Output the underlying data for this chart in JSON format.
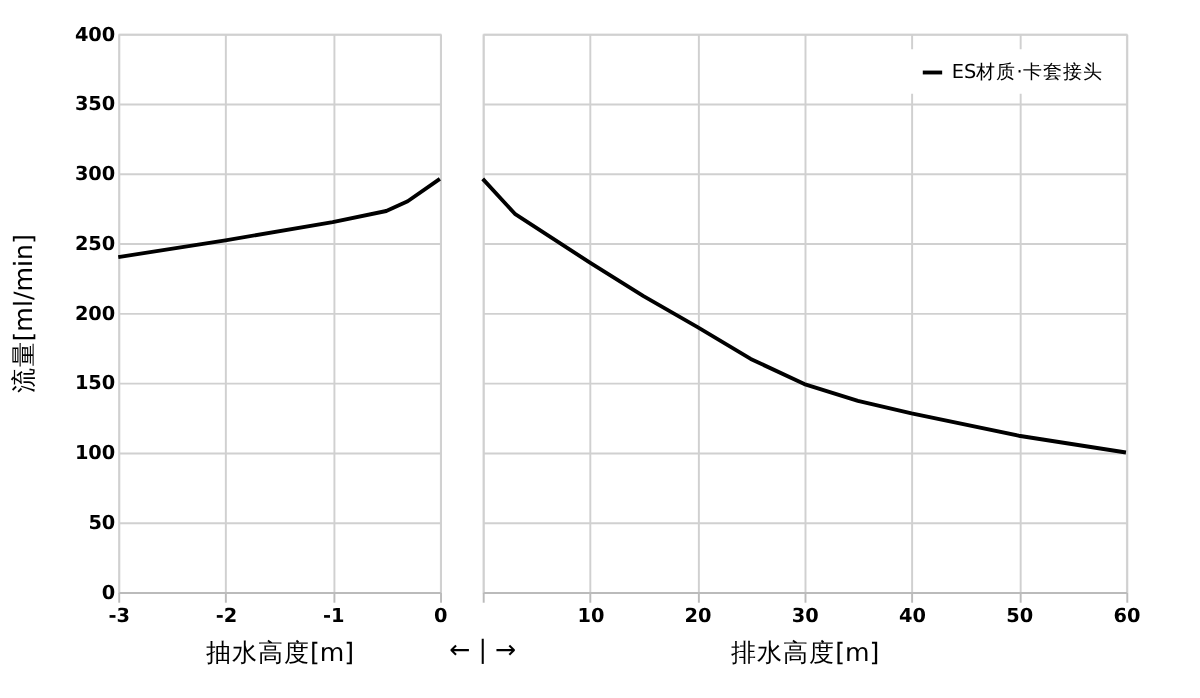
{
  "chart_data": [
    {
      "type": "line",
      "xlabel": "抽水高度[m]",
      "ylabel": "流量[ml/min]",
      "x": [
        -3,
        -2,
        -1,
        -0.5,
        -0.3,
        0
      ],
      "series": [
        {
          "color": "#000000",
          "values": [
            240,
            252,
            265,
            273,
            280,
            296
          ]
        }
      ],
      "xlim": [
        -3,
        0
      ],
      "xticks": [
        -3,
        -2,
        -1,
        0
      ],
      "ylim": [
        0,
        400
      ],
      "yticks": [
        0,
        50,
        100,
        150,
        200,
        250,
        300,
        350,
        400
      ],
      "grid": true,
      "marker": "none",
      "line_style": "solid"
    },
    {
      "type": "line",
      "xlabel": "排水高度[m]",
      "annotations": [
        "← | →"
      ],
      "x": [
        0,
        3,
        10,
        15,
        20,
        25,
        30,
        35,
        40,
        50,
        60
      ],
      "series": [
        {
          "name": "ES材质·卡套接头",
          "color": "#000000",
          "values": [
            296,
            271,
            236,
            212,
            190,
            167,
            149,
            137,
            128,
            112,
            100
          ]
        }
      ],
      "xlim": [
        0,
        60
      ],
      "xticks": [
        {
          "value": 0,
          "label": null
        },
        10,
        20,
        30,
        40,
        50,
        60
      ],
      "ylim": [
        0,
        400
      ],
      "yticks": [
        0,
        50,
        100,
        150,
        200,
        250,
        300,
        350,
        400
      ],
      "tick_labels": "x",
      "grid": true,
      "legend": "top right",
      "marker": "none",
      "line_style": "solid"
    }
  ]
}
